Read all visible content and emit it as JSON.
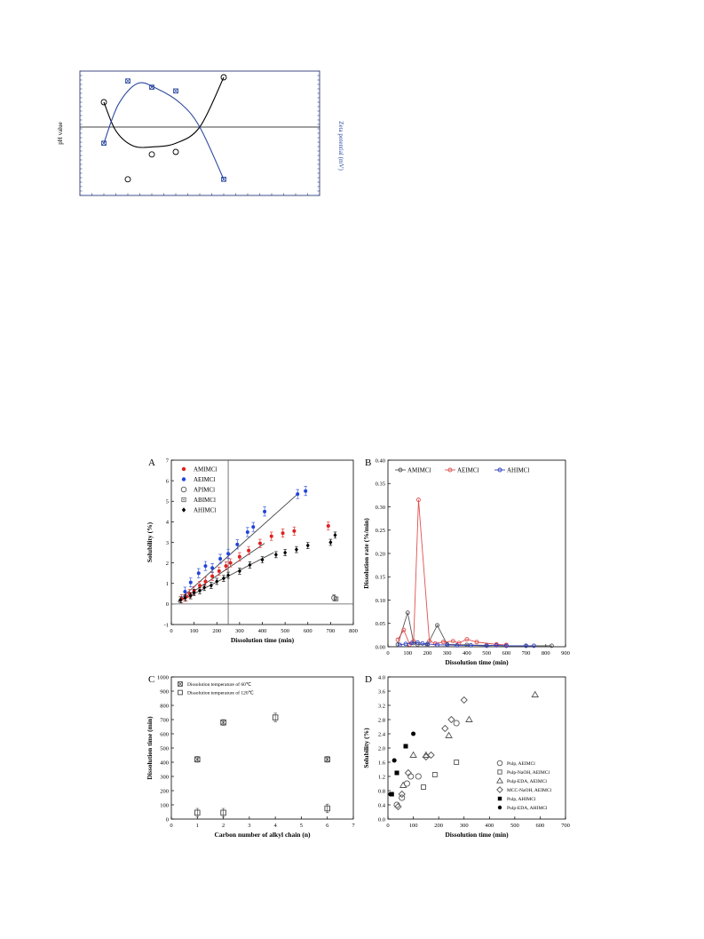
{
  "page": {
    "background": "#ffffff"
  },
  "chart_data": [
    {
      "id": "top",
      "type": "line",
      "title": "",
      "ylabel_left": "pH value",
      "ylabel_right": "Zeta potential (mV)",
      "ylim": [
        0,
        100
      ],
      "xlim": [
        0,
        10
      ],
      "ref_line_y": 55,
      "colors": {
        "frame": "#2e3a7a",
        "black": "#000000",
        "blue": "#2b4aa0"
      },
      "series": [
        {
          "color": "black",
          "marker": "circle-open",
          "points": [
            [
              1,
              75
            ],
            [
              2,
              13
            ],
            [
              3,
              33
            ],
            [
              4,
              35
            ],
            [
              6,
              95
            ]
          ],
          "curve": [
            [
              1,
              75
            ],
            [
              1.5,
              52
            ],
            [
              2.2,
              40
            ],
            [
              3,
              39
            ],
            [
              4,
              42
            ],
            [
              5,
              55
            ],
            [
              6,
              95
            ]
          ]
        },
        {
          "color": "blue",
          "marker": "square-x",
          "points": [
            [
              1,
              42
            ],
            [
              2,
              92
            ],
            [
              3,
              87
            ],
            [
              4,
              84
            ],
            [
              6,
              13
            ]
          ],
          "curve": [
            [
              1,
              42
            ],
            [
              1.6,
              73
            ],
            [
              2.4,
              90
            ],
            [
              3.2,
              86
            ],
            [
              4.2,
              74
            ],
            [
              5,
              55
            ],
            [
              6,
              13
            ]
          ]
        }
      ]
    },
    {
      "id": "A",
      "panel_label": "A",
      "type": "scatter",
      "xlabel": "Dissolution time (min)",
      "ylabel": "Solubility (%)",
      "xlim": [
        0,
        800
      ],
      "ylim": [
        -1,
        7
      ],
      "xticks": [
        0,
        100,
        200,
        300,
        400,
        500,
        600,
        700,
        800
      ],
      "yticks": [
        -1,
        0,
        1,
        2,
        3,
        4,
        5,
        6,
        7
      ],
      "vline_x": 250,
      "hline_y": 0,
      "legend": {
        "position": "top-left",
        "entries": [
          {
            "label": "AMIMCl",
            "color": "#e02020",
            "marker": "dot"
          },
          {
            "label": "AEIMCl",
            "color": "#2244d8",
            "marker": "dot"
          },
          {
            "label": "APIMCl",
            "color": "#555555",
            "marker": "circle-open"
          },
          {
            "label": "ABIMCl",
            "color": "#555555",
            "marker": "square-dot"
          },
          {
            "label": "AHIMCl",
            "color": "#000000",
            "marker": "diamond"
          }
        ]
      },
      "series": [
        {
          "name": "AMIMCl",
          "color": "#e02020",
          "marker": "dot",
          "x": [
            45,
            65,
            80,
            100,
            125,
            150,
            180,
            210,
            240,
            260,
            300,
            340,
            390,
            440,
            490,
            540,
            690
          ],
          "y": [
            0.25,
            0.35,
            0.5,
            0.65,
            0.9,
            1.1,
            1.35,
            1.6,
            1.85,
            2.0,
            2.3,
            2.6,
            2.95,
            3.3,
            3.45,
            3.55,
            3.8
          ],
          "err": 0.2
        },
        {
          "name": "AEIMCl",
          "color": "#2244d8",
          "marker": "dot",
          "x": [
            60,
            85,
            120,
            150,
            180,
            215,
            250,
            290,
            335,
            360,
            410,
            555,
            590
          ],
          "y": [
            0.6,
            1.05,
            1.5,
            1.85,
            1.75,
            2.2,
            2.45,
            2.9,
            3.5,
            3.75,
            4.5,
            5.35,
            5.5
          ],
          "err": 0.22
        },
        {
          "name": "APIMCl",
          "color": "#555555",
          "marker": "circle-open",
          "x": [
            715
          ],
          "y": [
            0.3
          ],
          "err": 0.15
        },
        {
          "name": "ABIMCl",
          "color": "#555555",
          "marker": "square-dot",
          "x": [
            725
          ],
          "y": [
            0.25
          ],
          "err": 0.1
        },
        {
          "name": "AHIMCl",
          "color": "#000000",
          "marker": "diamond",
          "x": [
            40,
            60,
            85,
            100,
            125,
            145,
            175,
            200,
            230,
            250,
            300,
            345,
            400,
            460,
            500,
            550,
            600,
            700,
            720
          ],
          "y": [
            0.2,
            0.3,
            0.4,
            0.55,
            0.65,
            0.8,
            0.9,
            1.1,
            1.25,
            1.4,
            1.6,
            1.9,
            2.15,
            2.4,
            2.5,
            2.65,
            2.85,
            3.0,
            3.35
          ],
          "err": 0.15
        }
      ],
      "fits": [
        {
          "color": "#444444",
          "from": [
            30,
            0.15
          ],
          "to": [
            550,
            5.3
          ]
        },
        {
          "color": "#444444",
          "from": [
            30,
            0.1
          ],
          "to": [
            410,
            2.95
          ]
        },
        {
          "color": "#444444",
          "from": [
            30,
            0.1
          ],
          "to": [
            450,
            2.5
          ]
        }
      ]
    },
    {
      "id": "B",
      "panel_label": "B",
      "type": "line",
      "xlabel": "Dissolution time (min)",
      "ylabel": "Dissolution rate (%/min)",
      "xlim": [
        0,
        900
      ],
      "ylim": [
        0,
        0.4
      ],
      "xticks": [
        0,
        100,
        200,
        300,
        400,
        500,
        600,
        700,
        800,
        900
      ],
      "yticks": [
        0.0,
        0.05,
        0.1,
        0.15,
        0.2,
        0.25,
        0.3,
        0.35,
        0.4
      ],
      "legend": {
        "position": "top"
      },
      "series": [
        {
          "name": "AMIMCl",
          "color": "#555555",
          "x": [
            50,
            100,
            130,
            150,
            200,
            250,
            300,
            400,
            500,
            600,
            700,
            830
          ],
          "y": [
            0.005,
            0.073,
            0.008,
            0.005,
            0.004,
            0.046,
            0.005,
            0.004,
            0.003,
            0.002,
            0.002,
            0.002
          ]
        },
        {
          "name": "AEIMCl",
          "color": "#e05050",
          "x": [
            50,
            80,
            110,
            130,
            155,
            210,
            240,
            280,
            330,
            360,
            400,
            450,
            550,
            600
          ],
          "y": [
            0.015,
            0.036,
            0.005,
            0.012,
            0.315,
            0.012,
            0.007,
            0.01,
            0.012,
            0.008,
            0.016,
            0.01,
            0.005,
            0.004
          ]
        },
        {
          "name": "AHIMCl",
          "color": "#3040c0",
          "x": [
            60,
            90,
            120,
            150,
            175,
            200,
            250,
            300,
            350,
            420,
            500,
            550,
            600,
            700,
            740
          ],
          "y": [
            0.004,
            0.006,
            0.008,
            0.009,
            0.007,
            0.006,
            0.004,
            0.004,
            0.003,
            0.003,
            0.002,
            0.003,
            0.002,
            0.002,
            0.002
          ]
        }
      ]
    },
    {
      "id": "C",
      "panel_label": "C",
      "type": "scatter",
      "xlabel": "Carbon number of alkyl chain (n)",
      "ylabel": "Dissolution time (min)",
      "xlim": [
        0,
        7
      ],
      "ylim": [
        0,
        1000
      ],
      "xticks": [
        0,
        1,
        2,
        3,
        4,
        5,
        6,
        7
      ],
      "yticks": [
        0,
        100,
        200,
        300,
        400,
        500,
        600,
        700,
        800,
        900,
        1000
      ],
      "legend": {
        "position": "top-left"
      },
      "series": [
        {
          "name": "Dissolution temperature of 60℃",
          "marker": "square-x",
          "color": "#444444",
          "x": [
            1,
            2,
            6
          ],
          "y": [
            420,
            680,
            420
          ],
          "err": 20
        },
        {
          "name": "Dissolution temperature of 120℃",
          "marker": "square-open",
          "color": "#444444",
          "x": [
            1,
            2,
            4,
            6
          ],
          "y": [
            45,
            45,
            715,
            75
          ],
          "err": 30
        }
      ]
    },
    {
      "id": "D",
      "panel_label": "D",
      "type": "scatter",
      "xlabel": "Dissolution time (min)",
      "ylabel": "Solubility (%)",
      "xlim": [
        0,
        700
      ],
      "ylim": [
        0,
        4.0
      ],
      "xticks": [
        0,
        100,
        200,
        300,
        400,
        500,
        600,
        700
      ],
      "yticks": [
        0.0,
        0.4,
        0.8,
        1.2,
        1.6,
        2.0,
        2.4,
        2.8,
        3.2,
        3.6,
        4.0
      ],
      "legend": {
        "position": "bottom-right"
      },
      "series": [
        {
          "name": "Pulp, AEIMCl",
          "marker": "circle-open",
          "color": "#555555",
          "x": [
            35,
            55,
            75,
            90,
            120,
            270
          ],
          "y": [
            0.4,
            0.6,
            1.0,
            1.2,
            1.2,
            2.7
          ]
        },
        {
          "name": "Pulp-NaOH, AEIMCl",
          "marker": "square-open",
          "color": "#555555",
          "x": [
            140,
            185,
            270
          ],
          "y": [
            0.9,
            1.25,
            1.6
          ]
        },
        {
          "name": "Pulp-EDA, AEIMCl",
          "marker": "triangle-open",
          "color": "#555555",
          "x": [
            60,
            100,
            150,
            240,
            320,
            580
          ],
          "y": [
            0.95,
            1.8,
            1.8,
            2.35,
            2.8,
            3.5
          ]
        },
        {
          "name": "MCC-NaOH, AEIMCl",
          "marker": "diamond-open",
          "color": "#555555",
          "x": [
            40,
            55,
            80,
            150,
            170,
            225,
            250,
            300
          ],
          "y": [
            0.35,
            0.7,
            1.3,
            1.75,
            1.8,
            2.55,
            2.8,
            3.35
          ]
        },
        {
          "name": "Pulp, AHIMCl",
          "marker": "square-filled",
          "color": "#000000",
          "x": [
            15,
            35,
            70
          ],
          "y": [
            0.7,
            1.3,
            2.05
          ]
        },
        {
          "name": "Pulp-EDA, AHIMCl",
          "marker": "circle-filled",
          "color": "#000000",
          "x": [
            10,
            25,
            100
          ],
          "y": [
            0.7,
            1.65,
            2.4
          ]
        }
      ]
    }
  ]
}
